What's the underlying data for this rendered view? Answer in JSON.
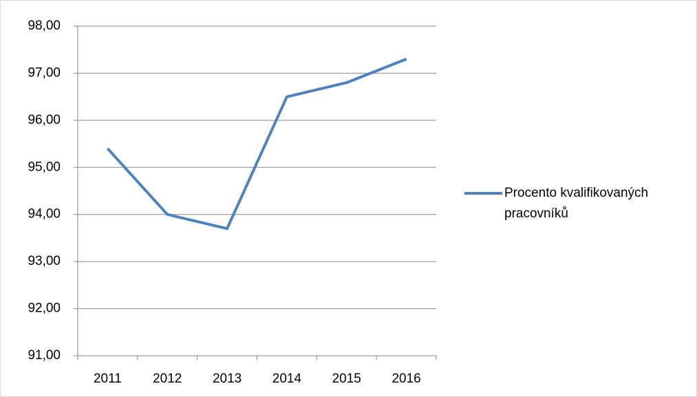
{
  "chart_data": {
    "type": "line",
    "categories": [
      "2011",
      "2012",
      "2013",
      "2014",
      "2015",
      "2016"
    ],
    "series": [
      {
        "name": "Procento kvalifikovaných pracovníků",
        "color": "#4f81bd",
        "values": [
          95.4,
          94.0,
          93.7,
          96.5,
          96.8,
          97.3
        ]
      }
    ],
    "ylim": [
      91,
      98
    ],
    "yticks": [
      {
        "value": 91,
        "label": "91,00"
      },
      {
        "value": 92,
        "label": "92,00"
      },
      {
        "value": 93,
        "label": "93,00"
      },
      {
        "value": 94,
        "label": "94,00"
      },
      {
        "value": 95,
        "label": "95,00"
      },
      {
        "value": 96,
        "label": "96,00"
      },
      {
        "value": 97,
        "label": "97,00"
      },
      {
        "value": 98,
        "label": "98,00"
      }
    ],
    "grid": true,
    "legend": "right"
  }
}
